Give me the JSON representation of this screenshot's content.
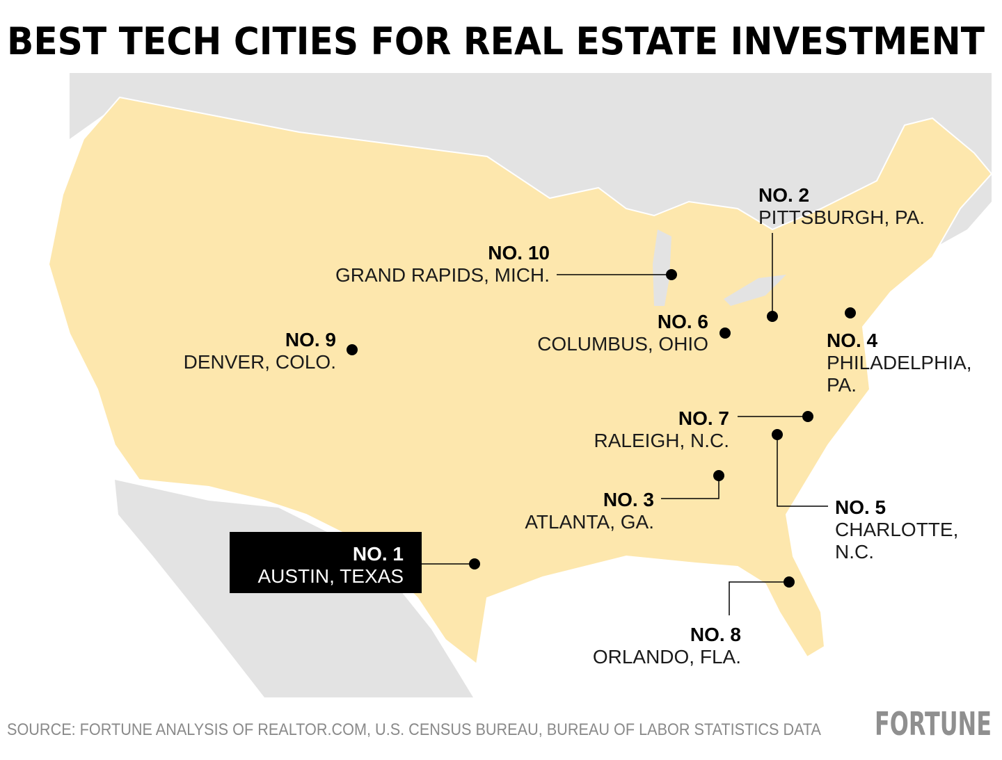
{
  "title": "BEST TECH CITIES FOR REAL ESTATE INVESTMENT",
  "cities": [
    {
      "rank": "NO. 1",
      "name": [
        "AUSTIN, TEXAS"
      ]
    },
    {
      "rank": "NO. 2",
      "name": [
        "PITTSBURGH, PA."
      ]
    },
    {
      "rank": "NO. 3",
      "name": [
        "ATLANTA, GA."
      ]
    },
    {
      "rank": "NO. 4",
      "name": [
        "PHILADELPHIA,",
        "PA."
      ]
    },
    {
      "rank": "NO. 5",
      "name": [
        "CHARLOTTE,",
        "N.C."
      ]
    },
    {
      "rank": "NO. 6",
      "name": [
        "COLUMBUS, OHIO"
      ]
    },
    {
      "rank": "NO. 7",
      "name": [
        "RALEIGH, N.C."
      ]
    },
    {
      "rank": "NO. 8",
      "name": [
        "ORLANDO, FLA."
      ]
    },
    {
      "rank": "NO. 9",
      "name": [
        "DENVER, COLO."
      ]
    },
    {
      "rank": "NO. 10",
      "name": [
        "GRAND RAPIDS, MICH."
      ]
    }
  ],
  "source": "SOURCE: FORTUNE ANALYSIS OF REALTOR.COM, U.S. CENSUS BUREAU, BUREAU OF LABOR STATISTICS DATA",
  "brand": "FORTUNE"
}
